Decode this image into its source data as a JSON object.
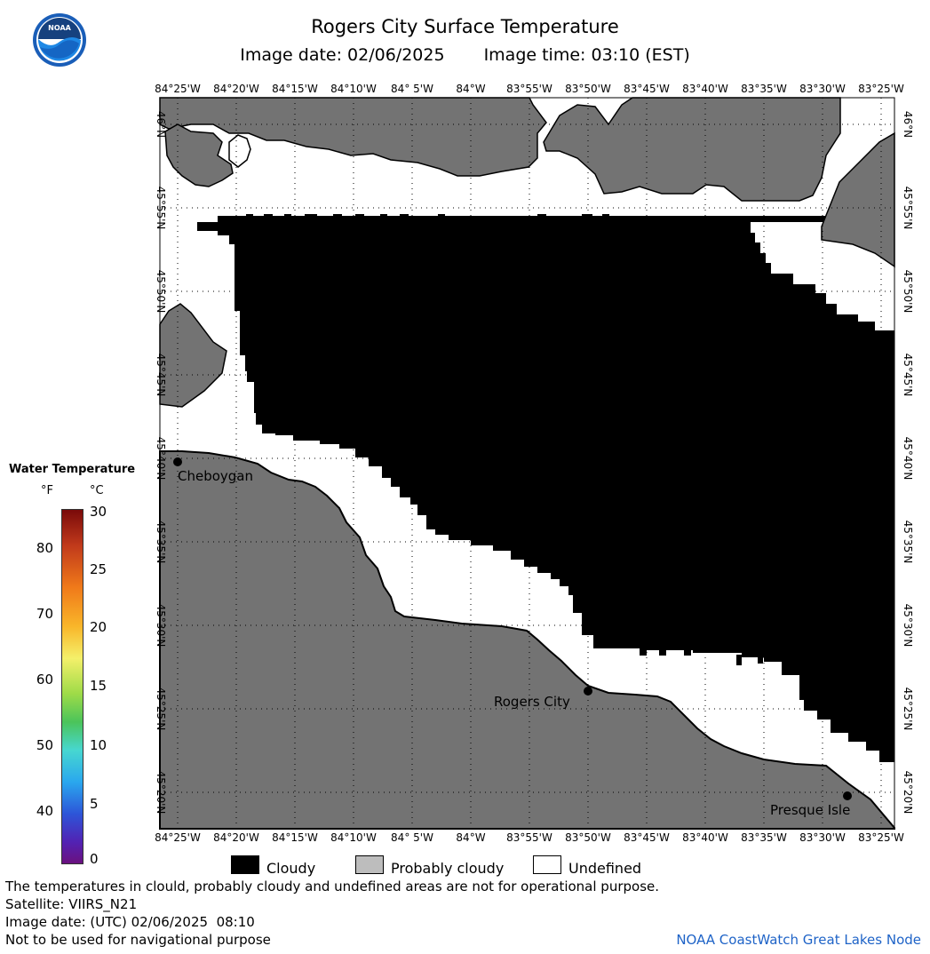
{
  "header": {
    "title": "Rogers City Surface Temperature",
    "image_date": "Image date: 02/06/2025",
    "image_time": "Image time: 03:10 (EST)"
  },
  "logo": {
    "text": "NOAA"
  },
  "map": {
    "lon_labels": [
      "84°25'W",
      "84°20'W",
      "84°15'W",
      "84°10'W",
      "84° 5'W",
      "84°W",
      "83°55'W",
      "83°50'W",
      "83°45'W",
      "83°40'W",
      "83°35'W",
      "83°30'W",
      "83°25'W"
    ],
    "lat_labels": [
      "46°N",
      "45°55'N",
      "45°50'N",
      "45°45'N",
      "45°40'N",
      "45°35'N",
      "45°30'N",
      "45°25'N",
      "45°20'N"
    ],
    "places": [
      {
        "name": "Cheboygan"
      },
      {
        "name": "Rogers City"
      },
      {
        "name": "Presque Isle"
      }
    ],
    "colors": {
      "cloudy": "#000000",
      "land": "#737373",
      "undefined": "#ffffff"
    }
  },
  "legend": {
    "title": "Water Temperature",
    "unit_f": "°F",
    "unit_c": "°C",
    "f_ticks": [
      "80",
      "70",
      "60",
      "50",
      "40"
    ],
    "c_ticks": [
      "30",
      "25",
      "20",
      "15",
      "10",
      "5",
      "0"
    ]
  },
  "key": {
    "cloudy": "Cloudy",
    "probably_cloudy": "Probably cloudy",
    "undefined": "Undefined"
  },
  "footer": {
    "disclaimer": "The temperatures in clould, probably cloudy and undefined areas are not for operational purpose.",
    "satellite": "Satellite: VIIRS_N21",
    "utc_date": "Image date: (UTC) 02/06/2025  08:10",
    "nav_warning": "Not to be used for navigational purpose",
    "credit": "NOAA CoastWatch Great Lakes Node"
  }
}
